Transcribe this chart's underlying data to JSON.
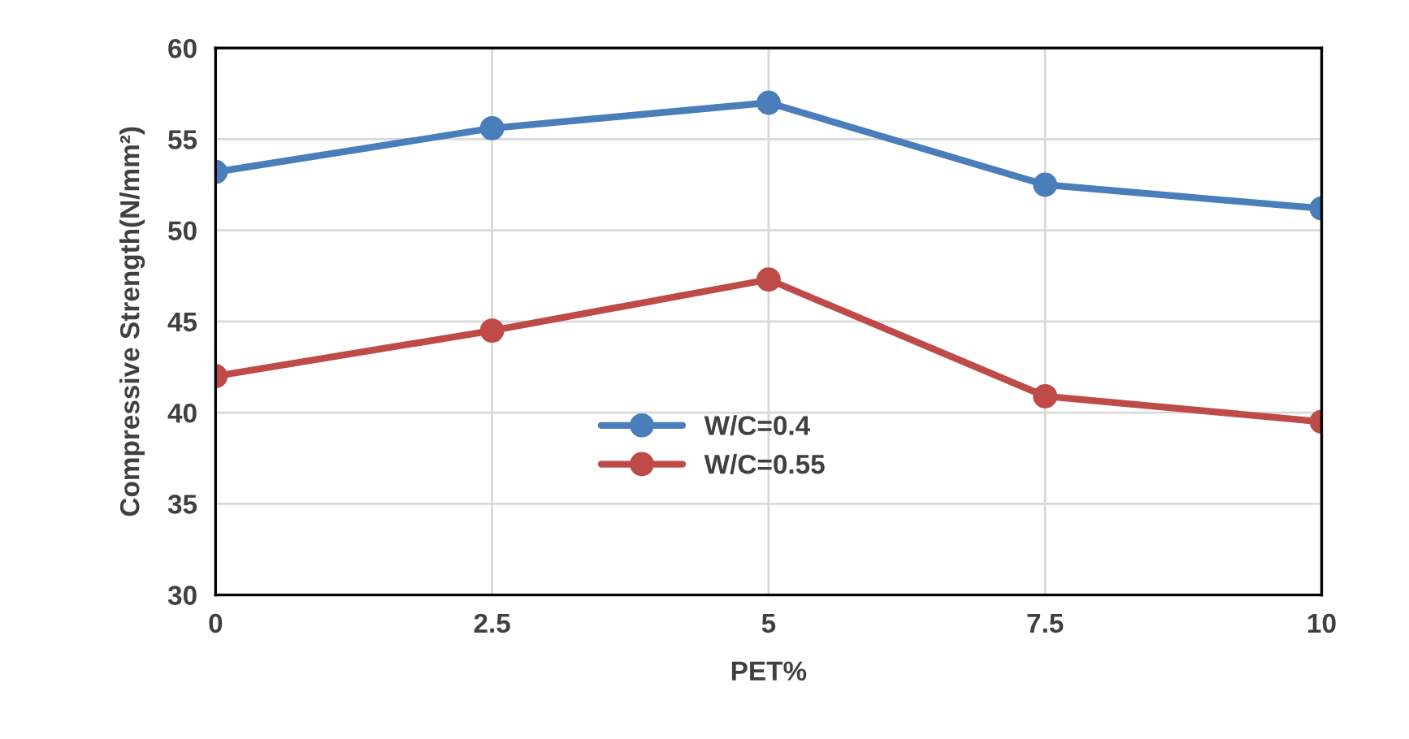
{
  "chart_data": {
    "type": "line",
    "xlabel": "PET%",
    "ylabel": "Compressive Strength(N/mm²)",
    "x": [
      0,
      2.5,
      5,
      7.5,
      10
    ],
    "series": [
      {
        "name": "W/C=0.4",
        "color": "#4a7ebb",
        "values": [
          53.2,
          55.6,
          57.0,
          52.5,
          51.2
        ]
      },
      {
        "name": "W/C=0.55",
        "color": "#be4b48",
        "values": [
          42.0,
          44.5,
          47.3,
          40.9,
          39.5
        ]
      }
    ],
    "xlim": [
      0,
      10
    ],
    "xticks": [
      0,
      2.5,
      5,
      7.5,
      10
    ],
    "ylim": [
      30,
      60
    ],
    "yticks": [
      30,
      35,
      40,
      45,
      50,
      55,
      60
    ],
    "grid": true,
    "legend": "center",
    "marker": "circle",
    "line_style": "solid"
  }
}
